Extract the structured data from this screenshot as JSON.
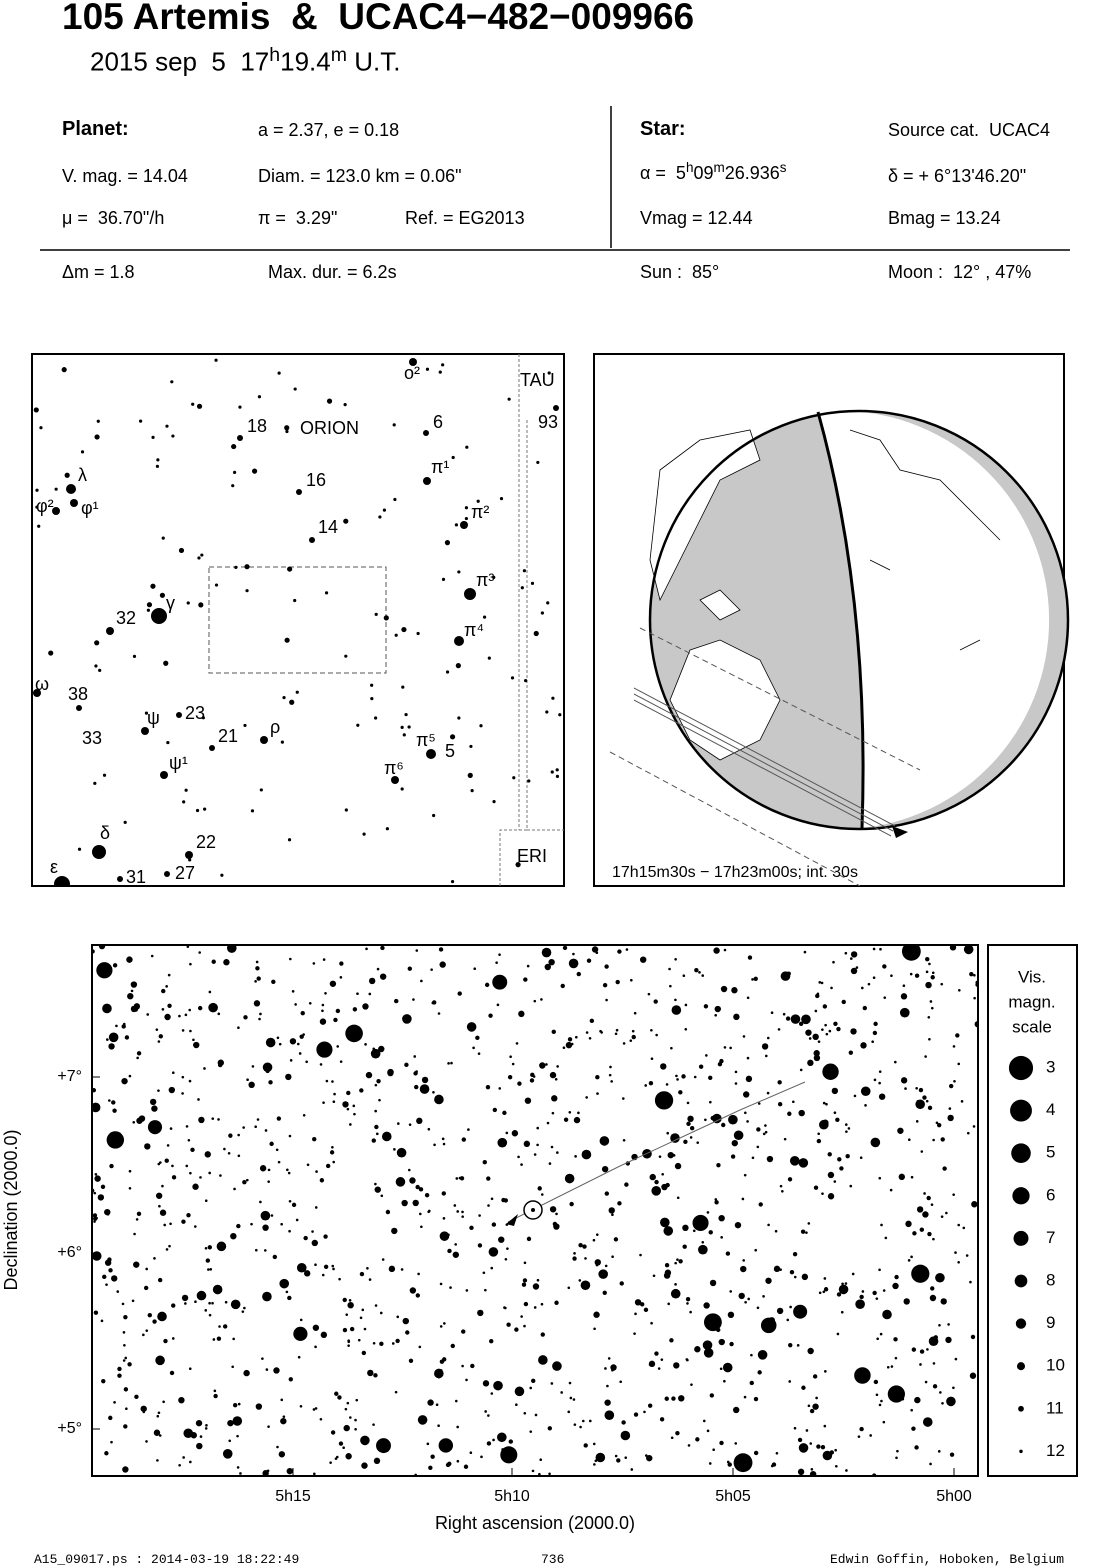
{
  "header": {
    "title": "105 Artemis  &  UCAC4−482−009966",
    "date_parts": [
      "2015 sep  5  17",
      "h",
      "19.4",
      "m",
      " U.T."
    ]
  },
  "planet": {
    "heading": "Planet:",
    "orbit": "a = 2.37, e = 0.18",
    "vmag": "V. mag. = 14.04",
    "diam": "Diam. = 123.0 km = 0.06\"",
    "mu": "μ =  36.70\"/h",
    "parallax": "π =  3.29\"",
    "ref": "Ref. = EG2013"
  },
  "star": {
    "heading": "Star:",
    "source": "Source cat.  UCAC4",
    "ra_parts": [
      "α =  5",
      "h",
      "09",
      "m",
      "26.936",
      "s"
    ],
    "dec": "δ = + 6°13'46.20\"",
    "vmag": "Vmag = 12.44",
    "bmag": "Bmag = 13.24"
  },
  "summary": {
    "dm": "Δm = 1.8",
    "maxdur": "Max. dur. = 6.2s",
    "sun": "Sun :  85°",
    "moon": "Moon :  12° , 47%"
  },
  "finder": {
    "labels": [
      "ο²",
      "TAU",
      "93",
      "18",
      "ORION",
      "6",
      "π¹",
      "λ",
      "16",
      "φ²",
      "φ¹",
      "π²",
      "14",
      "π³",
      "γ",
      "32",
      "π⁴",
      "ω",
      "38",
      "ψ",
      "23",
      "33",
      "ρ",
      "21",
      "π⁵",
      "5",
      "π⁶",
      "ψ¹",
      "δ",
      "22",
      "ε",
      "31",
      "27",
      "ERI"
    ]
  },
  "globe": {
    "caption": "17h15m30s − 17h23m00s; int. 30s"
  },
  "main": {
    "x_label": "Right ascension (2000.0)",
    "y_label": "Declination (2000.0)",
    "xticks": [
      "5h15",
      "5h10",
      "5h05",
      "5h00"
    ],
    "yticks": [
      "+7°",
      "+6°",
      "+5°"
    ]
  },
  "legend": {
    "title": [
      "Vis.",
      "magn.",
      "scale"
    ],
    "magnitudes": [
      3,
      4,
      5,
      6,
      7,
      8,
      9,
      10,
      11,
      12
    ]
  },
  "footer": {
    "left": "A15_09017.ps : 2014-03-19 18:22:49",
    "center": "736",
    "right": "Edwin Goffin, Hoboken, Belgium"
  }
}
